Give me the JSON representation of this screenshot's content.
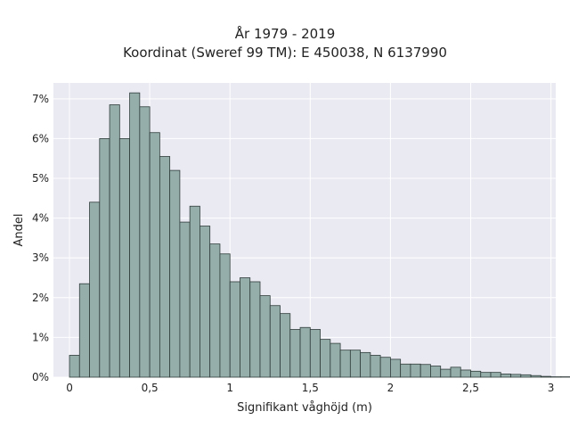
{
  "chart_data": {
    "type": "bar",
    "title": "År 1979 - 2019",
    "subtitle": "Koordinat (Sweref 99 TM): E 450038, N 6137990",
    "xlabel": "Signifikant våghöjd (m)",
    "ylabel": "Andel",
    "xlim": [
      -0.1,
      3.03
    ],
    "ylim": [
      0,
      7.4
    ],
    "x_ticks": [
      0,
      0.5,
      1,
      1.5,
      2,
      2.5,
      3
    ],
    "x_tick_labels": [
      "0",
      "0,5",
      "1",
      "1,5",
      "2",
      "2,5",
      "3"
    ],
    "y_ticks": [
      0,
      1,
      2,
      3,
      4,
      5,
      6,
      7
    ],
    "y_tick_labels": [
      "0%",
      "1%",
      "2%",
      "3%",
      "4%",
      "5%",
      "6%",
      "7%"
    ],
    "grid": true,
    "bin_width": 0.0625,
    "bin_start": 0.0,
    "values": [
      0.55,
      2.35,
      4.4,
      6.0,
      6.85,
      6.0,
      7.15,
      6.8,
      6.15,
      5.55,
      5.2,
      3.9,
      4.3,
      3.8,
      3.35,
      3.1,
      2.4,
      2.5,
      2.4,
      2.05,
      1.8,
      1.6,
      1.2,
      1.25,
      1.2,
      0.95,
      0.85,
      0.68,
      0.68,
      0.62,
      0.55,
      0.5,
      0.45,
      0.33,
      0.33,
      0.32,
      0.28,
      0.2,
      0.25,
      0.18,
      0.15,
      0.12,
      0.12,
      0.08,
      0.07,
      0.06,
      0.04,
      0.02,
      0.01,
      0.01
    ],
    "colors": {
      "bar_fill": "#95aeaa",
      "bar_edge": "#2f3c3a",
      "plot_bg": "#eaeaf2",
      "grid": "#ffffff"
    }
  }
}
